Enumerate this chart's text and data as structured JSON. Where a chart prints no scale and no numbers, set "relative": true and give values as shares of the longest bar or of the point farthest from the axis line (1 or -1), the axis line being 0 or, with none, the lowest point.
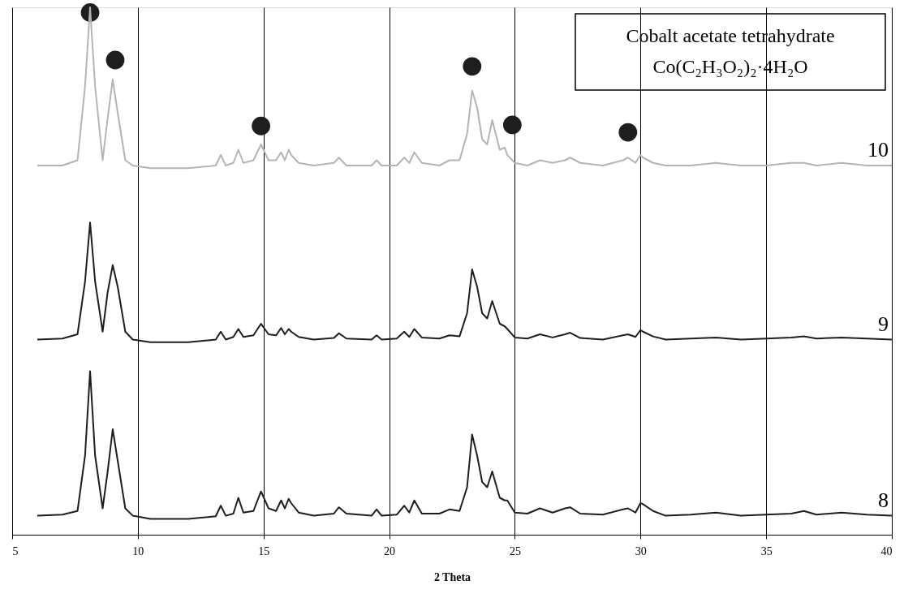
{
  "chart_data": {
    "type": "line",
    "relative": true,
    "xlabel": "2 Theta",
    "xlim": [
      5,
      40
    ],
    "xticks": [
      5,
      10,
      15,
      20,
      25,
      30,
      35,
      40
    ],
    "grid": "x",
    "legend": false,
    "tick_labels": "x",
    "marker": "none",
    "line_style": "solid",
    "annotations": [
      "Cobalt acetate tetrahydrate",
      "Co(C₂H₃O₂)₂·4H₂O"
    ],
    "x": [
      6,
      7,
      7.6,
      7.9,
      8.1,
      8.3,
      8.6,
      8.8,
      9.0,
      9.2,
      9.5,
      9.8,
      10.5,
      12,
      13.1,
      13.3,
      13.5,
      13.8,
      14.0,
      14.2,
      14.6,
      14.9,
      15.2,
      15.5,
      15.7,
      15.85,
      16.0,
      16.1,
      16.4,
      17,
      17.8,
      18.0,
      18.3,
      19.3,
      19.5,
      19.7,
      20.3,
      20.6,
      20.8,
      21.0,
      21.3,
      22.0,
      22.4,
      22.8,
      23.1,
      23.3,
      23.5,
      23.7,
      23.9,
      24.1,
      24.4,
      24.6,
      24.7,
      25.0,
      25.5,
      26.0,
      26.5,
      27.0,
      27.2,
      27.6,
      28.5,
      29.3,
      29.5,
      29.8,
      30.0,
      30.1,
      30.5,
      31,
      32,
      33,
      34,
      35,
      36,
      36.5,
      37,
      38,
      39,
      40
    ],
    "series": [
      {
        "name": "10",
        "color": "#b4b4b4",
        "values": [
          0.7,
          0.7,
          0.71,
          0.85,
          1.0,
          0.85,
          0.71,
          0.79,
          0.863,
          0.8,
          0.71,
          0.7,
          0.695,
          0.695,
          0.7,
          0.72,
          0.7,
          0.705,
          0.73,
          0.705,
          0.71,
          0.74,
          0.71,
          0.71,
          0.725,
          0.71,
          0.73,
          0.72,
          0.705,
          0.7,
          0.705,
          0.715,
          0.7,
          0.7,
          0.71,
          0.7,
          0.7,
          0.715,
          0.705,
          0.725,
          0.705,
          0.7,
          0.71,
          0.71,
          0.76,
          0.842,
          0.81,
          0.75,
          0.74,
          0.786,
          0.73,
          0.734,
          0.72,
          0.705,
          0.7,
          0.71,
          0.705,
          0.71,
          0.715,
          0.705,
          0.7,
          0.71,
          0.715,
          0.705,
          0.72,
          0.715,
          0.705,
          0.7,
          0.7,
          0.705,
          0.7,
          0.7,
          0.705,
          0.705,
          0.7,
          0.705,
          0.7,
          0.7
        ]
      },
      {
        "name": "9",
        "color": "#1e1e1e",
        "values": [
          0.37,
          0.372,
          0.38,
          0.48,
          0.592,
          0.48,
          0.385,
          0.46,
          0.511,
          0.47,
          0.385,
          0.37,
          0.365,
          0.365,
          0.37,
          0.385,
          0.37,
          0.375,
          0.39,
          0.375,
          0.378,
          0.4,
          0.38,
          0.378,
          0.392,
          0.38,
          0.39,
          0.385,
          0.375,
          0.37,
          0.373,
          0.382,
          0.372,
          0.37,
          0.378,
          0.37,
          0.372,
          0.385,
          0.375,
          0.39,
          0.374,
          0.372,
          0.378,
          0.376,
          0.42,
          0.503,
          0.47,
          0.42,
          0.41,
          0.443,
          0.4,
          0.395,
          0.39,
          0.374,
          0.372,
          0.38,
          0.374,
          0.38,
          0.383,
          0.373,
          0.37,
          0.378,
          0.38,
          0.375,
          0.388,
          0.385,
          0.376,
          0.37,
          0.372,
          0.374,
          0.37,
          0.372,
          0.374,
          0.376,
          0.372,
          0.374,
          0.372,
          0.37
        ]
      },
      {
        "name": "8",
        "color": "#1e1e1e",
        "values": [
          0.036,
          0.038,
          0.045,
          0.15,
          0.31,
          0.15,
          0.05,
          0.12,
          0.2,
          0.14,
          0.05,
          0.036,
          0.03,
          0.03,
          0.035,
          0.055,
          0.036,
          0.04,
          0.07,
          0.042,
          0.045,
          0.082,
          0.05,
          0.045,
          0.065,
          0.05,
          0.068,
          0.06,
          0.042,
          0.036,
          0.04,
          0.052,
          0.04,
          0.036,
          0.048,
          0.036,
          0.038,
          0.055,
          0.042,
          0.065,
          0.04,
          0.04,
          0.048,
          0.045,
          0.09,
          0.19,
          0.15,
          0.1,
          0.09,
          0.12,
          0.07,
          0.065,
          0.065,
          0.042,
          0.04,
          0.05,
          0.042,
          0.05,
          0.052,
          0.04,
          0.038,
          0.048,
          0.05,
          0.042,
          0.06,
          0.058,
          0.045,
          0.036,
          0.038,
          0.042,
          0.036,
          0.038,
          0.04,
          0.045,
          0.038,
          0.042,
          0.038,
          0.036
        ]
      },
      {
        "type": "scatter",
        "marker": "circle",
        "color": "#1e1e1e",
        "x": [
          8.1,
          9.1,
          14.9,
          23.3,
          24.9,
          29.5
        ],
        "values": [
          0.99,
          0.9,
          0.775,
          0.888,
          0.777,
          0.763
        ]
      }
    ]
  }
}
